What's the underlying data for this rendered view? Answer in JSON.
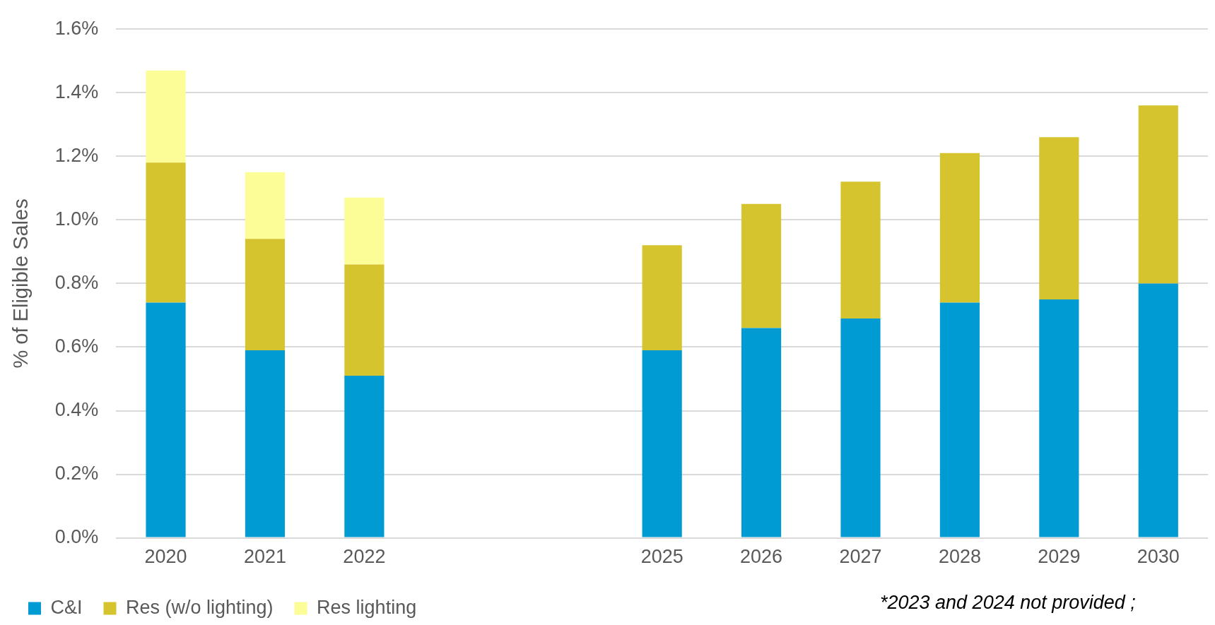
{
  "chart_data": {
    "type": "bar",
    "stacked": true,
    "ylabel": "% of Eligible Sales",
    "categories": [
      "2020",
      "2021",
      "2022",
      null,
      null,
      "2025",
      "2026",
      "2027",
      "2028",
      "2029",
      "2030"
    ],
    "series": [
      {
        "name": "C&I",
        "color": "#009bd2",
        "values": [
          0.74,
          0.59,
          0.51,
          null,
          null,
          0.59,
          0.66,
          0.69,
          0.74,
          0.75,
          0.8
        ]
      },
      {
        "name": "Res (w/o lighting)",
        "color": "#d5c42d",
        "values": [
          0.44,
          0.35,
          0.35,
          null,
          null,
          0.33,
          0.39,
          0.43,
          0.47,
          0.51,
          0.56
        ]
      },
      {
        "name": "Res lighting",
        "color": "#fdfd98",
        "values": [
          0.29,
          0.21,
          0.21,
          null,
          null,
          null,
          null,
          null,
          null,
          null,
          null
        ]
      }
    ],
    "ylim": [
      0,
      1.6
    ],
    "yticks": [
      {
        "value": 0,
        "label": "0.0%"
      },
      {
        "value": 0.2,
        "label": "0.2%"
      },
      {
        "value": 0.4,
        "label": "0.4%"
      },
      {
        "value": 0.6,
        "label": "0.6%"
      },
      {
        "value": 0.8,
        "label": "0.8%"
      },
      {
        "value": 1.0,
        "label": "1.0%"
      },
      {
        "value": 1.2,
        "label": "1.2%"
      },
      {
        "value": 1.4,
        "label": "1.4%"
      },
      {
        "value": 1.6,
        "label": "1.6%"
      }
    ],
    "grid": "y",
    "legend": "bottom",
    "annotations": [
      "*2023 and 2024 not provided ;"
    ]
  }
}
